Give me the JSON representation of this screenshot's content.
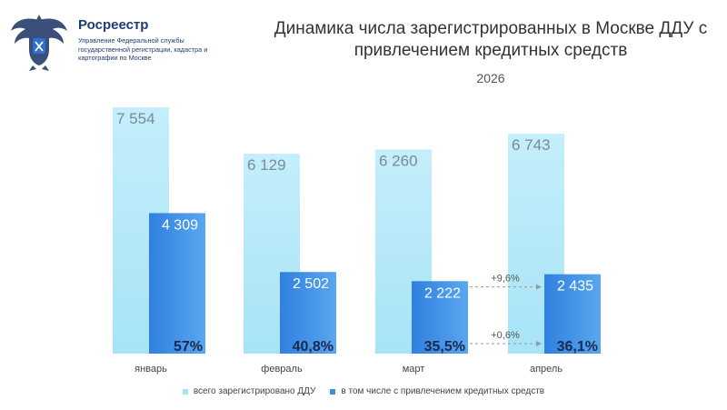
{
  "header": {
    "org_name": "Росреестр",
    "org_description": "Управление Федеральной службы государственной регистрации, кадастра и картографии по Москве"
  },
  "chart_data": {
    "type": "bar",
    "title": "Динамика числа зарегистрированных в Москве ДДУ с привлечением кредитных средств",
    "subtitle": "2026",
    "categories": [
      "январь",
      "февраль",
      "март",
      "апрель"
    ],
    "series": [
      {
        "name": "всего зарегистрировано ДДУ",
        "values": [
          7554,
          6129,
          6260,
          6743
        ],
        "labels": [
          "7 554",
          "6 129",
          "6 260",
          "6 743"
        ],
        "color": "#a7e3f7"
      },
      {
        "name": "в том числе с привлечением кредитных средств",
        "values": [
          4309,
          2502,
          2222,
          2435
        ],
        "labels": [
          "4 309",
          "2 502",
          "2 222",
          "2 435"
        ],
        "color": "#3b8ee6"
      }
    ],
    "share_labels": [
      "57%",
      "40,8%",
      "35,5%",
      "36,1%"
    ],
    "annotations": [
      {
        "text": "+9,6%",
        "from": "март",
        "to": "апрель",
        "level": "value"
      },
      {
        "text": "+0,6%",
        "from": "март",
        "to": "апрель",
        "level": "share"
      }
    ],
    "ylim": [
      0,
      8000
    ],
    "grid": false,
    "legend_position": "bottom"
  }
}
